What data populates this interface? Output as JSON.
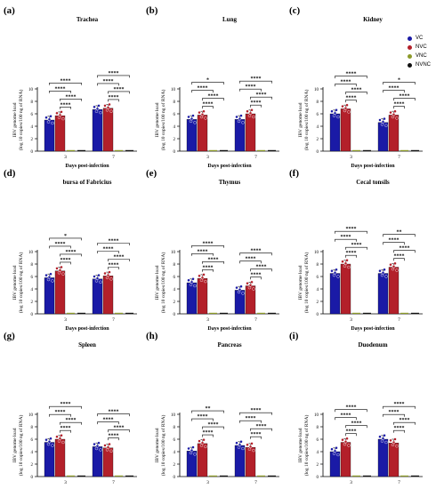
{
  "legend": {
    "placement": "top-right",
    "items": [
      {
        "label": "VC",
        "color": "#1a1aa6"
      },
      {
        "label": "NVC",
        "color": "#b3202a"
      },
      {
        "label": "VNC",
        "color": "#8c9a2a"
      },
      {
        "label": "NVNC",
        "color": "#111111"
      }
    ]
  },
  "colors": {
    "VC": "#1a1aa6",
    "NVC": "#b3202a",
    "VNC": "#8c9a2a",
    "NVNC": "#111111"
  },
  "common": {
    "ylabel_line1": "IBV genome load",
    "ylabel_line2": "(log 10 copies/100 ng of RNA)",
    "xlabel": "Days post-infection",
    "categories": [
      "3",
      "7"
    ],
    "yticks": [
      "0",
      "2",
      "4",
      "6",
      "8",
      "10"
    ],
    "sig": "****"
  },
  "chart_data": [
    {
      "panel": "(a)",
      "title": "Trachea",
      "type": "bar",
      "ylim": [
        0,
        10
      ],
      "categories": [
        "3",
        "7"
      ],
      "series": [
        {
          "name": "VC",
          "values": [
            5.0,
            6.7
          ]
        },
        {
          "name": "NVC",
          "values": [
            5.7,
            6.9
          ]
        },
        {
          "name": "VNC",
          "values": [
            0,
            0
          ]
        },
        {
          "name": "NVNC",
          "values": [
            0,
            0
          ]
        }
      ],
      "annotations": [
        "****",
        "****",
        "****",
        "****",
        "****",
        "****",
        "****",
        "****"
      ]
    },
    {
      "panel": "(b)",
      "title": "Lung",
      "type": "bar",
      "ylim": [
        0,
        10
      ],
      "categories": [
        "3",
        "7"
      ],
      "series": [
        {
          "name": "VC",
          "values": [
            5.1,
            5.1
          ]
        },
        {
          "name": "NVC",
          "values": [
            5.8,
            6.0
          ]
        },
        {
          "name": "VNC",
          "values": [
            0,
            0
          ]
        },
        {
          "name": "NVNC",
          "values": [
            0,
            0
          ]
        }
      ],
      "annotations": [
        "****",
        "****",
        "****",
        "*",
        "****",
        "****",
        "****",
        "****",
        "**",
        "****"
      ]
    },
    {
      "panel": "(c)",
      "title": "Kidney",
      "type": "bar",
      "ylim": [
        0,
        10
      ],
      "categories": [
        "3",
        "7"
      ],
      "series": [
        {
          "name": "VC",
          "values": [
            6.0,
            4.6
          ]
        },
        {
          "name": "NVC",
          "values": [
            6.8,
            5.8
          ]
        },
        {
          "name": "VNC",
          "values": [
            0,
            0
          ]
        },
        {
          "name": "NVNC",
          "values": [
            0,
            0
          ]
        }
      ],
      "annotations": [
        "****",
        "****",
        "****",
        "****",
        "****",
        "****",
        "****",
        "*",
        "****"
      ]
    },
    {
      "panel": "(d)",
      "title": "bursa of Fabricius",
      "type": "bar",
      "ylim": [
        0,
        10
      ],
      "categories": [
        "3",
        "7"
      ],
      "series": [
        {
          "name": "VC",
          "values": [
            5.8,
            5.6
          ]
        },
        {
          "name": "NVC",
          "values": [
            6.9,
            6.1
          ]
        },
        {
          "name": "VNC",
          "values": [
            0,
            0
          ]
        },
        {
          "name": "NVNC",
          "values": [
            0,
            0
          ]
        }
      ],
      "annotations": [
        "****",
        "****",
        "****",
        "*",
        "****",
        "****",
        "****",
        "****"
      ]
    },
    {
      "panel": "(e)",
      "title": "Thymus",
      "type": "bar",
      "ylim": [
        0,
        10
      ],
      "categories": [
        "3",
        "7"
      ],
      "series": [
        {
          "name": "VC",
          "values": [
            5.0,
            3.8
          ]
        },
        {
          "name": "NVC",
          "values": [
            5.7,
            4.5
          ]
        },
        {
          "name": "VNC",
          "values": [
            0,
            0
          ]
        },
        {
          "name": "NVNC",
          "values": [
            0,
            0
          ]
        }
      ],
      "annotations": [
        "****",
        "****",
        "****",
        "****",
        "****",
        "****",
        "****",
        "****"
      ]
    },
    {
      "panel": "(f)",
      "title": "Cecal tonsils",
      "type": "bar",
      "ylim": [
        0,
        10
      ],
      "categories": [
        "3",
        "7"
      ],
      "series": [
        {
          "name": "VC",
          "values": [
            6.5,
            6.5
          ]
        },
        {
          "name": "NVC",
          "values": [
            8.0,
            7.5
          ]
        },
        {
          "name": "VNC",
          "values": [
            0,
            0
          ]
        },
        {
          "name": "NVNC",
          "values": [
            0,
            0
          ]
        }
      ],
      "annotations": [
        "****",
        "****",
        "****",
        "****",
        "****",
        "****",
        "****",
        "**",
        "****"
      ]
    },
    {
      "panel": "(g)",
      "title": "Spleen",
      "type": "bar",
      "ylim": [
        0,
        10
      ],
      "categories": [
        "3",
        "7"
      ],
      "series": [
        {
          "name": "VC",
          "values": [
            5.5,
            4.8
          ]
        },
        {
          "name": "NVC",
          "values": [
            6.0,
            4.6
          ]
        },
        {
          "name": "VNC",
          "values": [
            0,
            0
          ]
        },
        {
          "name": "NVNC",
          "values": [
            0,
            0
          ]
        }
      ],
      "annotations": [
        "****",
        "****",
        "****",
        "****",
        "****",
        "****",
        "****",
        "****"
      ]
    },
    {
      "panel": "(h)",
      "title": "Pancreas",
      "type": "bar",
      "ylim": [
        0,
        10
      ],
      "categories": [
        "3",
        "7"
      ],
      "series": [
        {
          "name": "VC",
          "values": [
            4.1,
            5.0
          ]
        },
        {
          "name": "NVC",
          "values": [
            5.3,
            4.7
          ]
        },
        {
          "name": "VNC",
          "values": [
            0,
            0
          ]
        },
        {
          "name": "NVNC",
          "values": [
            0,
            0
          ]
        }
      ],
      "annotations": [
        "****",
        "****",
        "****",
        "**",
        "****",
        "****",
        "****",
        "****"
      ]
    },
    {
      "panel": "(i)",
      "title": "Duodenum",
      "type": "bar",
      "ylim": [
        0,
        10
      ],
      "categories": [
        "3",
        "7"
      ],
      "series": [
        {
          "name": "VC",
          "values": [
            4.0,
            6.0
          ]
        },
        {
          "name": "NVC",
          "values": [
            5.5,
            5.4
          ]
        },
        {
          "name": "VNC",
          "values": [
            0,
            0
          ]
        },
        {
          "name": "NVNC",
          "values": [
            0,
            0
          ]
        }
      ],
      "annotations": [
        "****",
        "****",
        "****",
        "****",
        "****",
        "****",
        "****",
        "****"
      ]
    }
  ]
}
